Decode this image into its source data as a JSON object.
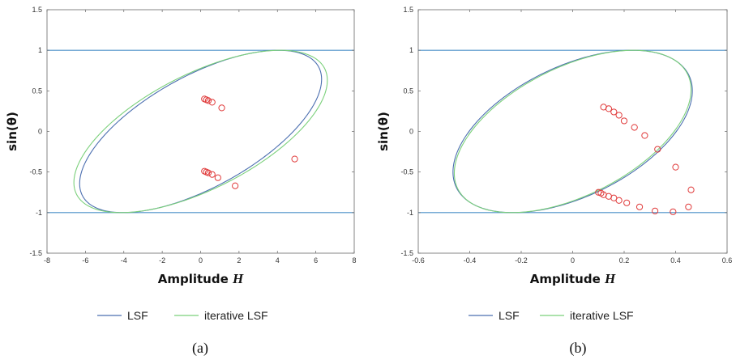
{
  "colors": {
    "lsf": "#4c6fb0",
    "iterative_lsf": "#7bd07b",
    "bound_line": "#4a8fc8",
    "points": "#e03b3b"
  },
  "legend": {
    "lsf": "LSF",
    "iterative": "iterative LSF"
  },
  "chart_data": [
    {
      "type": "line",
      "caption": "(a)",
      "xlabel": "Amplitude",
      "xlabel_italic": "H",
      "ylabel": "sin(θ)",
      "xlim": [
        -8,
        8
      ],
      "ylim": [
        -1.5,
        1.5
      ],
      "xticks": [
        -8,
        -6,
        -4,
        -2,
        0,
        2,
        4,
        6,
        8
      ],
      "yticks": [
        -1.5,
        -1,
        -0.5,
        0,
        0.5,
        1,
        1.5
      ],
      "xtick_labels": [
        "-8",
        "-6",
        "-4",
        "-2",
        "0",
        "2",
        "4",
        "6",
        "8"
      ],
      "ytick_labels": [
        "-1.5",
        "-1",
        "-0.5",
        "0",
        "0.5",
        "1",
        "1.5"
      ],
      "hlines": [
        1,
        -1
      ],
      "series": [
        {
          "name": "LSF",
          "ellipse": {
            "h": 6.3,
            "phi": 140
          }
        },
        {
          "name": "iterative LSF",
          "ellipse": {
            "h": 6.6,
            "phi": 141
          }
        }
      ],
      "points": [
        {
          "x": 0.2,
          "y": 0.4
        },
        {
          "x": 0.3,
          "y": 0.39
        },
        {
          "x": 0.4,
          "y": 0.38
        },
        {
          "x": 0.6,
          "y": 0.36
        },
        {
          "x": 1.1,
          "y": 0.29
        },
        {
          "x": 4.9,
          "y": -0.34
        },
        {
          "x": 0.2,
          "y": -0.49
        },
        {
          "x": 0.3,
          "y": -0.5
        },
        {
          "x": 0.4,
          "y": -0.51
        },
        {
          "x": 0.6,
          "y": -0.53
        },
        {
          "x": 0.9,
          "y": -0.57
        },
        {
          "x": 1.8,
          "y": -0.67
        }
      ]
    },
    {
      "type": "line",
      "caption": "(b)",
      "xlabel": "Amplitude",
      "xlabel_italic": "H",
      "ylabel": "sin(θ)",
      "xlim": [
        -0.6,
        0.6
      ],
      "ylim": [
        -1.5,
        1.5
      ],
      "xticks": [
        -0.6,
        -0.4,
        -0.2,
        0,
        0.2,
        0.4,
        0.6
      ],
      "yticks": [
        -1.5,
        -1,
        -0.5,
        0,
        0.5,
        1,
        1.5
      ],
      "xtick_labels": [
        "-0.6",
        "-0.4",
        "-0.2",
        "0",
        "0.2",
        "0.4",
        "0.6"
      ],
      "ytick_labels": [
        "-1.5",
        "-1",
        "-0.5",
        "0",
        "0.5",
        "1",
        "1.5"
      ],
      "hlines": [
        1,
        -1
      ],
      "series": [
        {
          "name": "LSF",
          "ellipse": {
            "h": 0.465,
            "phi": 150
          }
        },
        {
          "name": "iterative LSF",
          "ellipse": {
            "h": 0.46,
            "phi": 149
          }
        }
      ],
      "points": [
        {
          "x": 0.12,
          "y": 0.3
        },
        {
          "x": 0.14,
          "y": 0.28
        },
        {
          "x": 0.16,
          "y": 0.24
        },
        {
          "x": 0.18,
          "y": 0.2
        },
        {
          "x": 0.2,
          "y": 0.13
        },
        {
          "x": 0.24,
          "y": 0.05
        },
        {
          "x": 0.28,
          "y": -0.05
        },
        {
          "x": 0.33,
          "y": -0.22
        },
        {
          "x": 0.4,
          "y": -0.44
        },
        {
          "x": 0.46,
          "y": -0.72
        },
        {
          "x": 0.45,
          "y": -0.93
        },
        {
          "x": 0.39,
          "y": -0.99
        },
        {
          "x": 0.32,
          "y": -0.98
        },
        {
          "x": 0.26,
          "y": -0.93
        },
        {
          "x": 0.21,
          "y": -0.88
        },
        {
          "x": 0.18,
          "y": -0.85
        },
        {
          "x": 0.16,
          "y": -0.82
        },
        {
          "x": 0.14,
          "y": -0.8
        },
        {
          "x": 0.12,
          "y": -0.78
        },
        {
          "x": 0.11,
          "y": -0.76
        },
        {
          "x": 0.1,
          "y": -0.75
        }
      ]
    }
  ]
}
